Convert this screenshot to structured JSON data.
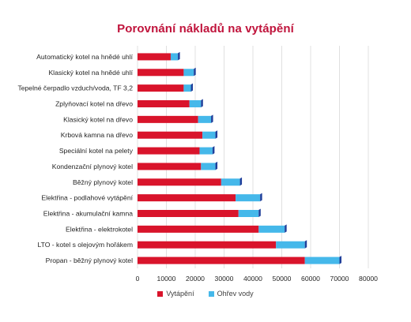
{
  "chart_data": {
    "type": "bar",
    "orientation": "horizontal",
    "stacked": true,
    "title": "Porovnání nákladů na vytápění",
    "categories": [
      "Automatický kotel na hnědé uhlí",
      "Klasický kotel na hnědé uhlí",
      "Tepelné čerpadlo vzduch/voda, TF 3,2",
      "Zplyňovací kotel na dřevo",
      "Klasický kotel na dřevo",
      "Krbová kamna na dřevo",
      "Speciální kotel na pelety",
      "Kondenzační plynový kotel",
      "Běžný plynový kotel",
      "Elektřina - podlahové vytápění",
      "Elektřina - akumulační kamna",
      "Elektřina - elektrokotel",
      "LTO - kotel s olejovým hořákem",
      "Propan - běžný plynový kotel"
    ],
    "series": [
      {
        "name": "Vytápění",
        "color": "#d9142b",
        "values": [
          11500,
          16000,
          16000,
          18000,
          21000,
          22500,
          21500,
          22000,
          29000,
          34000,
          35000,
          42000,
          48000,
          58000
        ]
      },
      {
        "name": "Ohřev vody",
        "color": "#45b8ea",
        "values": [
          2500,
          3500,
          2500,
          4000,
          4500,
          4500,
          4500,
          5000,
          6500,
          8500,
          7000,
          9000,
          10000,
          12000
        ]
      }
    ],
    "xlim": [
      0,
      80000
    ],
    "xticks": [
      0,
      10000,
      20000,
      30000,
      40000,
      50000,
      60000,
      70000,
      80000
    ],
    "grid": true,
    "legend_position": "bottom"
  }
}
